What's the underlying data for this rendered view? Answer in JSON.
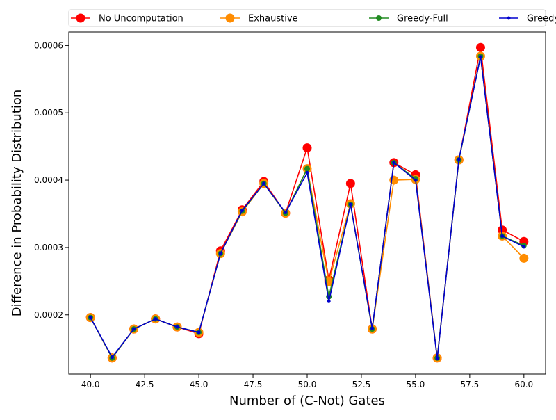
{
  "chart_data": {
    "type": "line",
    "title": "",
    "xlabel": "Number of (C-Not) Gates",
    "ylabel": "Difference in Probability Distribution",
    "xlim": [
      39.0,
      61.0
    ],
    "ylim": [
      0.000112,
      0.00062
    ],
    "xticks": [
      40.0,
      42.5,
      45.0,
      47.5,
      50.0,
      52.5,
      55.0,
      57.5,
      60.0
    ],
    "xtick_labels": [
      "40.0",
      "42.5",
      "45.0",
      "47.5",
      "50.0",
      "52.5",
      "55.0",
      "57.5",
      "60.0"
    ],
    "yticks": [
      0.0002,
      0.0003,
      0.0004,
      0.0005,
      0.0006
    ],
    "ytick_labels": [
      "0.0002",
      "0.0003",
      "0.0004",
      "0.0005",
      "0.0006"
    ],
    "legend_position": "top (outside plot, single row)",
    "grid": false,
    "x": [
      40,
      41,
      42,
      43,
      44,
      45,
      46,
      47,
      48,
      49,
      50,
      51,
      52,
      53,
      54,
      55,
      56,
      57,
      58,
      59,
      60
    ],
    "series": [
      {
        "name": "No Uncomputation",
        "color": "#ff0000",
        "marker_size": 13,
        "values": [
          0.000196,
          0.000136,
          0.000179,
          0.000194,
          0.000182,
          0.000172,
          0.000295,
          0.000356,
          0.000398,
          0.000351,
          0.000448,
          0.000252,
          0.000395,
          0.000179,
          0.000426,
          0.000408,
          0.000136,
          0.00043,
          0.000597,
          0.000326,
          0.000309
        ]
      },
      {
        "name": "Exhaustive",
        "color": "#ff8c00",
        "marker_size": 13,
        "values": [
          0.000196,
          0.000136,
          0.000179,
          0.000194,
          0.000182,
          0.000174,
          0.000291,
          0.000353,
          0.000395,
          0.000351,
          0.000417,
          0.000249,
          0.000365,
          0.000179,
          0.0004,
          0.000401,
          0.000136,
          0.00043,
          0.000584,
          0.000317,
          0.000284
        ]
      },
      {
        "name": "Greedy-Full",
        "color": "#228b22",
        "marker_size": 8,
        "values": [
          0.000196,
          0.000136,
          0.000179,
          0.000194,
          0.000182,
          0.000174,
          0.000291,
          0.000354,
          0.000395,
          0.000351,
          0.000417,
          0.000227,
          0.000364,
          0.000179,
          0.000426,
          0.000402,
          0.000136,
          0.00043,
          0.000584,
          0.000317,
          0.000303
        ]
      },
      {
        "name": "Greedy-Partial",
        "color": "#0000cd",
        "marker_size": 5,
        "values": [
          0.000196,
          0.000137,
          0.000179,
          0.000194,
          0.000182,
          0.000174,
          0.000291,
          0.000355,
          0.000395,
          0.000352,
          0.000411,
          0.00022,
          0.000364,
          0.00018,
          0.000426,
          0.0004,
          0.000135,
          0.000431,
          0.000583,
          0.000317,
          0.000301
        ]
      }
    ]
  }
}
